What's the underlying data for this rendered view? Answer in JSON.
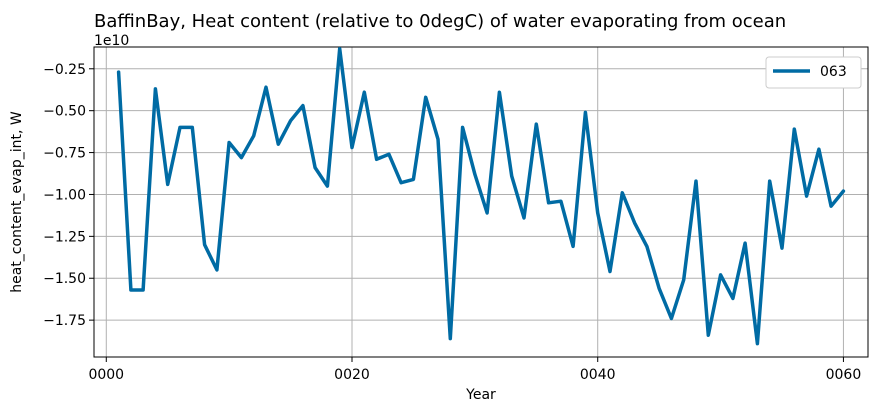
{
  "chart_data": {
    "type": "line",
    "title": "BaffinBay, Heat content (relative to 0degC) of water evaporating from ocean",
    "xlabel": "Year",
    "ylabel": "heat_content_evap_int, W",
    "y_offset_label": "1e10",
    "xlim": [
      -1.0,
      62.0
    ],
    "ylim": [
      -1.97,
      -0.12
    ],
    "x_ticks": [
      0,
      20,
      40,
      60
    ],
    "x_tick_labels": [
      "0000",
      "0020",
      "0040",
      "0060"
    ],
    "y_ticks": [
      -1.75,
      -1.5,
      -1.25,
      -1.0,
      -0.75,
      -0.5,
      -0.25
    ],
    "y_tick_labels": [
      "−1.75",
      "−1.50",
      "−1.25",
      "−1.00",
      "−0.75",
      "−0.50",
      "−0.25"
    ],
    "grid": true,
    "legend_position": "top-right",
    "series": [
      {
        "name": "063",
        "color": "#006ba4",
        "x": [
          1,
          2,
          3,
          4,
          5,
          6,
          7,
          8,
          9,
          10,
          11,
          12,
          13,
          14,
          15,
          16,
          17,
          18,
          19,
          20,
          21,
          22,
          23,
          24,
          25,
          26,
          27,
          28,
          29,
          30,
          31,
          32,
          33,
          34,
          35,
          36,
          37,
          38,
          39,
          40,
          41,
          42,
          43,
          44,
          45,
          46,
          47,
          48,
          49,
          50,
          51,
          52,
          53,
          54,
          55,
          56,
          57,
          58,
          59,
          60
        ],
        "values": [
          -0.27,
          -1.57,
          -1.57,
          -0.37,
          -0.94,
          -0.6,
          -0.6,
          -1.3,
          -1.45,
          -0.69,
          -0.78,
          -0.65,
          -0.36,
          -0.7,
          -0.56,
          -0.47,
          -0.84,
          -0.95,
          -0.13,
          -0.72,
          -0.39,
          -0.79,
          -0.76,
          -0.93,
          -0.91,
          -0.42,
          -0.67,
          -1.86,
          -0.6,
          -0.88,
          -1.11,
          -0.39,
          -0.89,
          -1.14,
          -0.58,
          -1.05,
          -1.04,
          -1.31,
          -0.51,
          -1.11,
          -1.46,
          -0.99,
          -1.17,
          -1.31,
          -1.56,
          -1.74,
          -1.51,
          -0.92,
          -1.84,
          -1.48,
          -1.62,
          -1.29,
          -1.89,
          -0.92,
          -1.32,
          -0.61,
          -1.01,
          -0.73,
          -1.07,
          -0.98
        ]
      }
    ]
  }
}
